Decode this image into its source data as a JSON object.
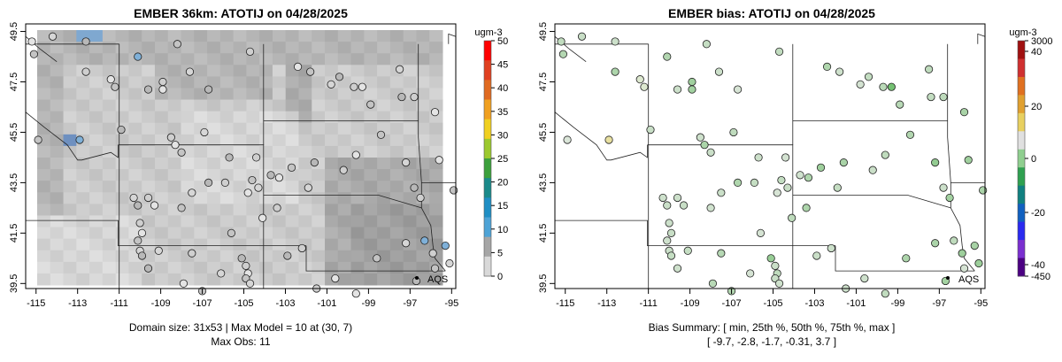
{
  "left_panel": {
    "title": "EMBER 36km: ATOTIJ on 04/28/2025",
    "caption_line1": "Domain size: 31x53 | Max Model = 10 at (30, 7)",
    "caption_line2": "Max Obs: 11",
    "colorbar_unit": "ugm-3",
    "colorbar_ticks": [
      "0",
      "5",
      "10",
      "15",
      "20",
      "25",
      "30",
      "35",
      "40",
      "45",
      "50"
    ],
    "colorbar_colors": [
      "#d9d9d9",
      "#a6a6a6",
      "#4ea3d6",
      "#1f8ec4",
      "#1a8a8a",
      "#3ca03c",
      "#9cc92e",
      "#f0d020",
      "#f0a020",
      "#e06a20",
      "#e04020",
      "#ff0000"
    ]
  },
  "right_panel": {
    "title": "EMBER bias: ATOTIJ on 04/28/2025",
    "caption_line1": "Bias Summary: [ min, 25th %, 50th %, 75th %, max ]",
    "caption_line2": "[ -9.7,   -2.8,   -1.7,   -0.31,   3.7 ]",
    "colorbar_unit": "ugm-3",
    "colorbar_ticks": [
      "3000",
      "40",
      "20",
      "0",
      "-20",
      "-40",
      "-450"
    ],
    "colorbar_colors": [
      "#4b0082",
      "#7a2fd0",
      "#2a2af0",
      "#1060c0",
      "#108080",
      "#2fa050",
      "#8fcf8f",
      "#e0e0e0",
      "#e8d060",
      "#e0a030",
      "#e07020",
      "#d03030",
      "#a01010"
    ]
  },
  "map": {
    "x_ticks": [
      "-115",
      "-113",
      "-111",
      "-109",
      "-107",
      "-105",
      "-103",
      "-101",
      "-99",
      "-97",
      "-95"
    ],
    "y_ticks": [
      "39.5",
      "41.5",
      "43.5",
      "45.5",
      "47.5",
      "49.5"
    ],
    "station_label": "AQS"
  },
  "chart_data": [
    {
      "type": "heatmap",
      "title": "EMBER 36km: ATOTIJ on 04/28/2025",
      "xlabel": "",
      "ylabel": "",
      "xlim": [
        -115.5,
        -94.8
      ],
      "ylim": [
        39.3,
        49.8
      ],
      "colorbar": {
        "label": "ugm-3",
        "range": [
          0,
          50
        ],
        "ticks": [
          0,
          5,
          10,
          15,
          20,
          25,
          30,
          35,
          40,
          45,
          50
        ]
      },
      "max_model": 10,
      "max_obs": 11,
      "domain_size": "31x53"
    },
    {
      "type": "scatter",
      "title": "EMBER bias: ATOTIJ on 04/28/2025",
      "xlabel": "",
      "ylabel": "",
      "xlim": [
        -115.5,
        -94.8
      ],
      "ylim": [
        39.3,
        49.8
      ],
      "colorbar": {
        "label": "ugm-3",
        "ticks": [
          3000,
          40,
          20,
          0,
          -20,
          -40,
          -450
        ]
      },
      "bias_summary": {
        "min": -9.7,
        "p25": -2.8,
        "p50": -1.7,
        "p75": -0.31,
        "max": 3.7
      }
    }
  ]
}
